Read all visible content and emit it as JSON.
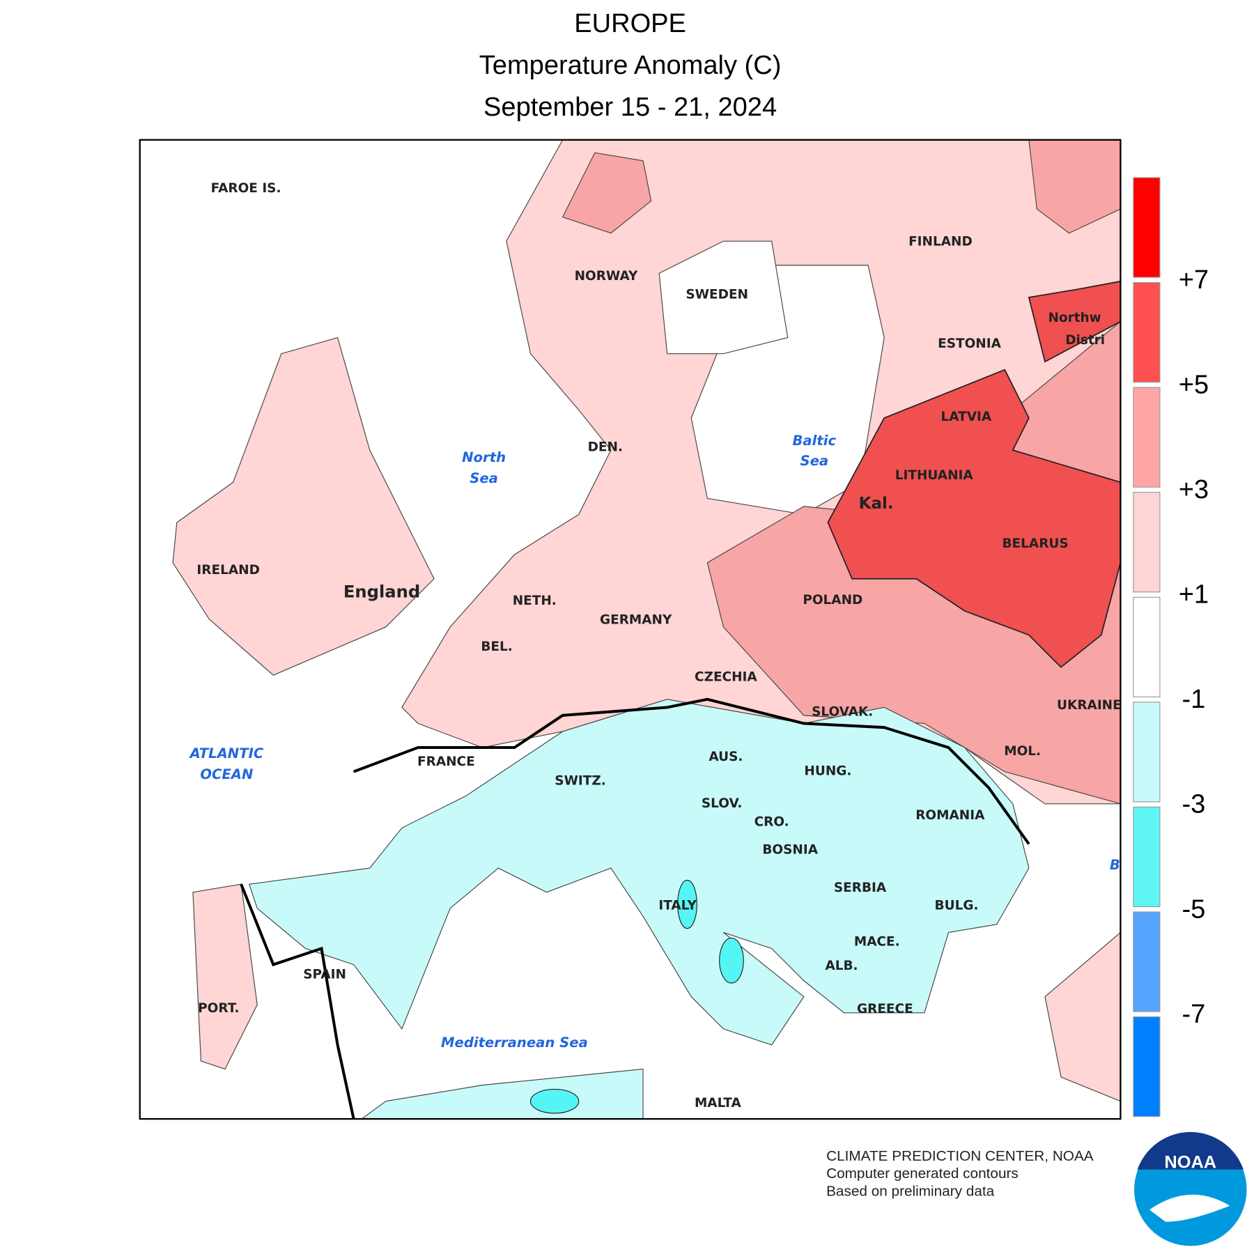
{
  "header": {
    "title": "EUROPE",
    "subtitle": "Temperature Anomaly (C)",
    "date": "September 15 - 21, 2024"
  },
  "map": {
    "labels": [
      "FAROE IS.",
      "FINLAND",
      "NORWAY",
      "SWEDEN",
      "ESTONIA",
      "Northw",
      "Distri",
      "LATVIA",
      "DEN.",
      "LITHUANIA",
      "Kal.",
      "BELARUS",
      "IRELAND",
      "England",
      "POLAND",
      "NETH.",
      "GERMANY",
      "BEL.",
      "CZECHIA",
      "UKRAINE",
      "SLOVAK.",
      "FRANCE",
      "MOL.",
      "AUS.",
      "HUNG.",
      "SWITZ.",
      "SLOV.",
      "ROMANIA",
      "CRO.",
      "BOSNIA",
      "SERBIA",
      "ITALY",
      "BULG.",
      "MACE.",
      "ALB.",
      "SPAIN",
      "PORT.",
      "GREECE",
      "MALTA"
    ],
    "water_labels": [
      "North",
      "Sea",
      "Baltic",
      "Sea",
      "ATLANTIC",
      "OCEAN",
      "B",
      "Mediterranean Sea"
    ]
  },
  "legend": {
    "colors": [
      "#ff0000",
      "#ff5050",
      "#ffa5a5",
      "#ffd5d5",
      "#ffffff",
      "#c8fafa",
      "#5ff5f5",
      "#55a5ff",
      "#0080ff"
    ],
    "labels": [
      "+7",
      "+5",
      "+3",
      "+1",
      "-1",
      "-3",
      "-5",
      "-7"
    ]
  },
  "footer": {
    "lines": [
      "CLIMATE PREDICTION CENTER, NOAA",
      "Computer generated contours",
      "Based on preliminary data"
    ],
    "logo": "NOAA"
  }
}
